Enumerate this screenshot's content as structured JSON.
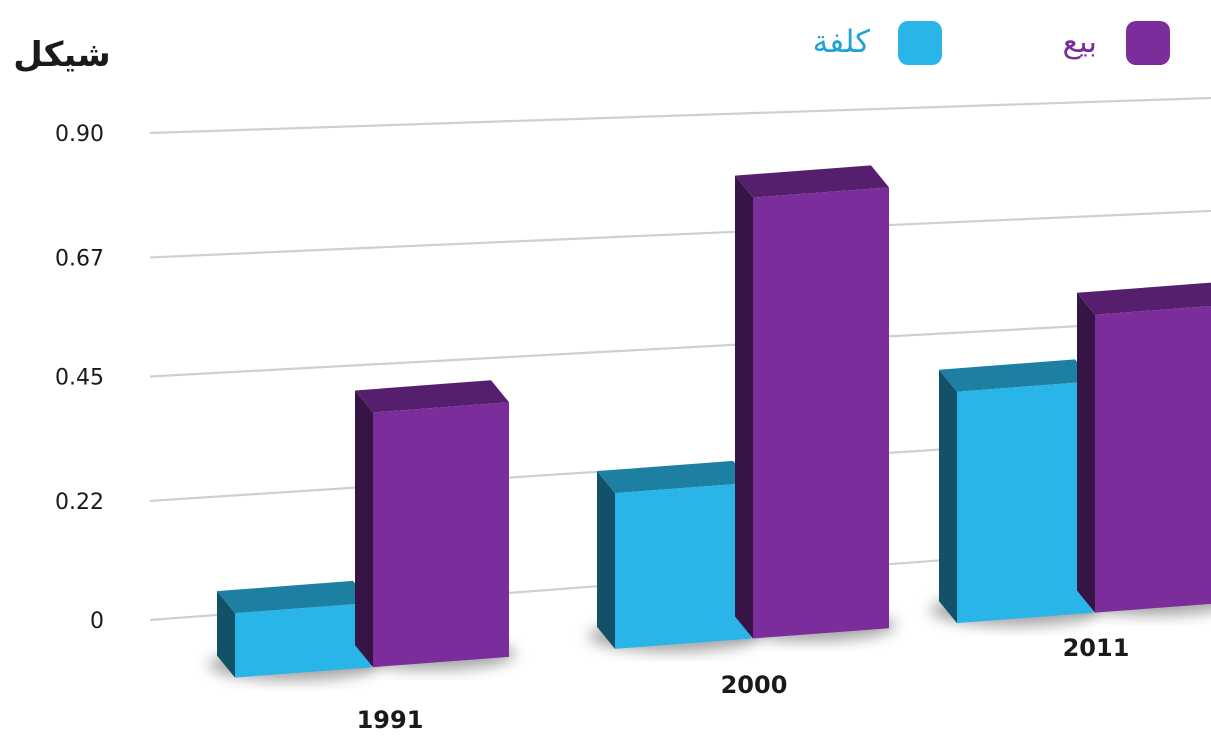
{
  "chart_data": {
    "type": "bar",
    "ylabel": "شيكل",
    "categories": [
      "1991",
      "2000",
      "2011"
    ],
    "series": [
      {
        "name": "كلفة",
        "color": "#29b5e8",
        "values": [
          0.12,
          0.3,
          0.46
        ]
      },
      {
        "name": "بيع",
        "color": "#7b2d9c",
        "values": [
          0.48,
          0.86,
          0.6
        ]
      }
    ],
    "yticks": [
      "0",
      "0.22",
      "0.45",
      "0.67",
      "0.90"
    ],
    "ylim": [
      0,
      0.9
    ],
    "grid": true,
    "legend_position": "top-right",
    "style": "3d-perspective"
  }
}
